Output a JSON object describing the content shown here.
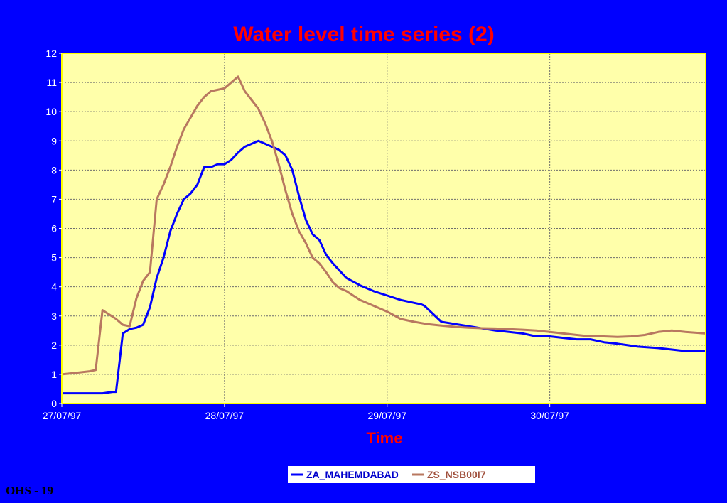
{
  "footer": {
    "label": "OHS - 19"
  },
  "colors": {
    "background": "#0000FF",
    "plot_background": "#FFFFAA",
    "plot_border": "#FFFF00",
    "grid": "#6E6E6E",
    "title": "#FF0000",
    "tick_text": "#FFFFFF",
    "legend_background": "#FFFFFF"
  },
  "chart_data": {
    "type": "line",
    "title": "Water level time series (2)",
    "xlabel": "Time",
    "ylabel": "",
    "x_unit": "hours since 27/07/97 00:00",
    "xlim": [
      0,
      95
    ],
    "ylim": [
      0,
      12
    ],
    "yticks": [
      0,
      1,
      2,
      3,
      4,
      5,
      6,
      7,
      8,
      9,
      10,
      11,
      12
    ],
    "xticks": [
      {
        "value": 0,
        "label": "27/07/97"
      },
      {
        "value": 24,
        "label": "28/07/97"
      },
      {
        "value": 48,
        "label": "29/07/97"
      },
      {
        "value": 72,
        "label": "30/07/97"
      }
    ],
    "grid": true,
    "legend_position": "bottom-center",
    "series": [
      {
        "name": "ZA_MAHEMDABAD",
        "color": "#0000FF",
        "x": [
          0,
          4,
          6,
          7.5,
          8,
          9,
          10,
          11,
          12,
          13,
          14,
          15,
          16,
          17,
          18,
          19,
          20,
          21,
          22,
          23,
          24,
          25,
          26,
          27,
          28,
          29,
          30,
          31,
          32,
          33,
          34,
          35,
          36,
          37,
          38,
          39,
          40,
          42,
          44,
          46,
          48,
          50,
          52,
          53,
          53.5,
          56,
          60,
          64,
          66,
          68,
          70,
          72,
          74,
          76,
          78,
          80,
          82,
          85,
          88,
          90,
          92,
          95
        ],
        "y": [
          0.35,
          0.35,
          0.35,
          0.4,
          0.4,
          2.4,
          2.55,
          2.6,
          2.7,
          3.3,
          4.3,
          5.0,
          5.9,
          6.5,
          7.0,
          7.2,
          7.5,
          8.1,
          8.1,
          8.2,
          8.2,
          8.35,
          8.6,
          8.8,
          8.9,
          9.0,
          8.9,
          8.8,
          8.7,
          8.5,
          8.0,
          7.1,
          6.3,
          5.8,
          5.6,
          5.1,
          4.8,
          4.3,
          4.05,
          3.85,
          3.7,
          3.55,
          3.45,
          3.4,
          3.35,
          2.8,
          2.65,
          2.5,
          2.45,
          2.4,
          2.3,
          2.3,
          2.25,
          2.2,
          2.2,
          2.1,
          2.05,
          1.95,
          1.9,
          1.85,
          1.8,
          1.8
        ]
      },
      {
        "name": "ZS_NSB00I7",
        "color": "#B87860",
        "x": [
          0,
          2,
          4,
          5,
          6,
          7,
          8,
          9,
          10,
          11,
          12,
          13,
          14,
          15,
          16,
          17,
          18,
          19,
          20,
          21,
          22,
          23,
          24,
          25,
          26,
          27,
          28,
          29,
          30,
          31,
          32,
          33,
          34,
          35,
          36,
          37,
          38,
          39,
          40,
          41,
          42,
          44,
          46,
          48,
          50,
          52,
          54,
          56,
          58,
          60,
          62,
          64,
          66,
          68,
          70,
          72,
          74,
          76,
          78,
          80,
          82,
          84,
          86,
          88,
          90,
          92,
          95
        ],
        "y": [
          1.0,
          1.05,
          1.1,
          1.15,
          3.2,
          3.05,
          2.9,
          2.7,
          2.65,
          3.6,
          4.2,
          4.5,
          7.0,
          7.5,
          8.1,
          8.8,
          9.4,
          9.8,
          10.2,
          10.5,
          10.7,
          10.75,
          10.8,
          11.0,
          11.2,
          10.7,
          10.4,
          10.1,
          9.6,
          9.0,
          8.2,
          7.3,
          6.5,
          5.9,
          5.5,
          5.0,
          4.8,
          4.5,
          4.15,
          3.95,
          3.85,
          3.55,
          3.35,
          3.15,
          2.9,
          2.8,
          2.72,
          2.67,
          2.63,
          2.6,
          2.58,
          2.57,
          2.55,
          2.53,
          2.5,
          2.45,
          2.4,
          2.35,
          2.3,
          2.3,
          2.28,
          2.3,
          2.35,
          2.45,
          2.5,
          2.45,
          2.4
        ]
      }
    ]
  }
}
